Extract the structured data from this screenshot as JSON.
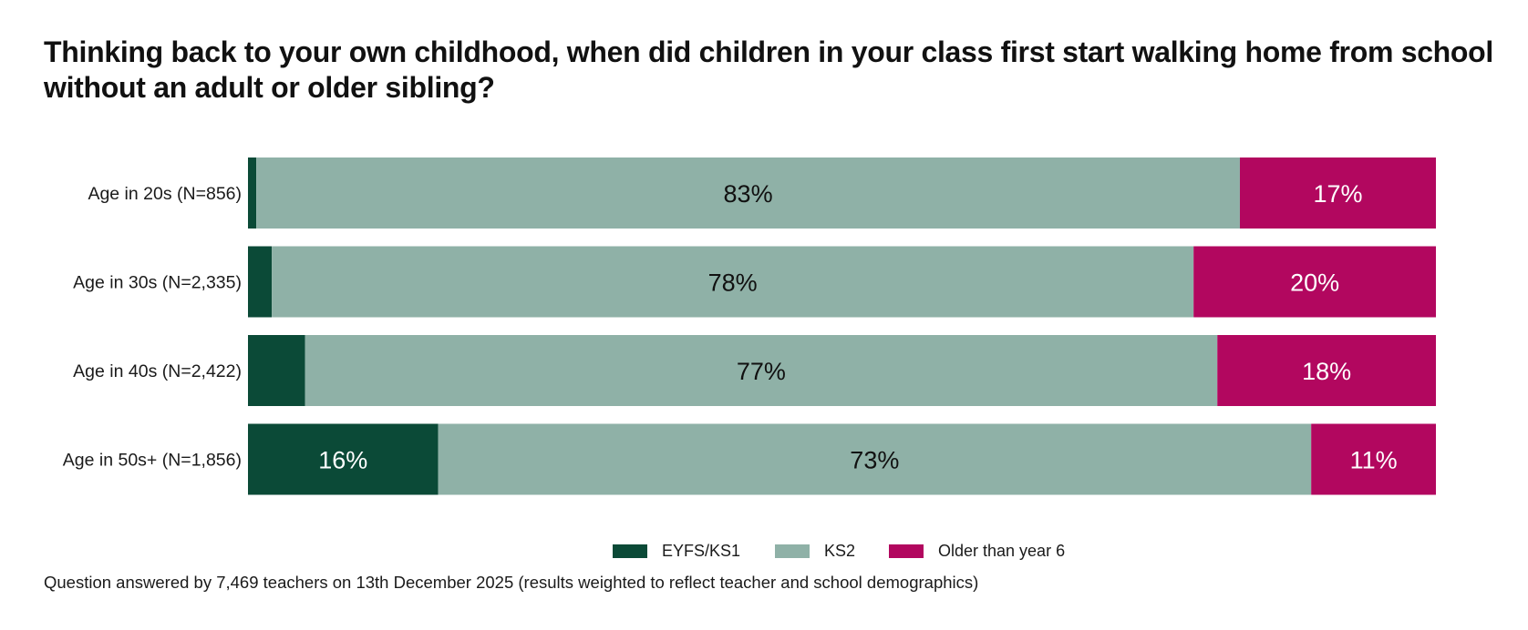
{
  "chart_data": {
    "type": "bar",
    "orientation": "horizontal",
    "stacked": true,
    "title": "Thinking back to your own childhood, when did children in your class first start walking home from school without an adult or older sibling?",
    "categories": [
      "Age in 20s (N=856)",
      "Age in 30s (N=2,335)",
      "Age in 40s (N=2,422)",
      "Age in 50s+ (N=1,856)"
    ],
    "series": [
      {
        "name": "EYFS/KS1",
        "color": "#0b4a37",
        "label_color": "#ffffff",
        "values": [
          0.7,
          2,
          4.8,
          16
        ],
        "labels": [
          "",
          "",
          "",
          "16%"
        ]
      },
      {
        "name": "KS2",
        "color": "#8fb1a7",
        "label_color": "#111111",
        "values": [
          82.8,
          77.6,
          76.8,
          73.5
        ],
        "labels": [
          "83%",
          "78%",
          "77%",
          "73%"
        ]
      },
      {
        "name": "Older than year 6",
        "color": "#b2075f",
        "label_color": "#ffffff",
        "values": [
          16.5,
          20.4,
          18.4,
          10.5
        ],
        "labels": [
          "17%",
          "20%",
          "18%",
          "11%"
        ]
      }
    ],
    "xlim": [
      0,
      100
    ],
    "grid": false,
    "legend_position": "bottom"
  },
  "footnote": "Question answered by 7,469 teachers on 13th December 2025 (results weighted to reflect teacher and school demographics)"
}
